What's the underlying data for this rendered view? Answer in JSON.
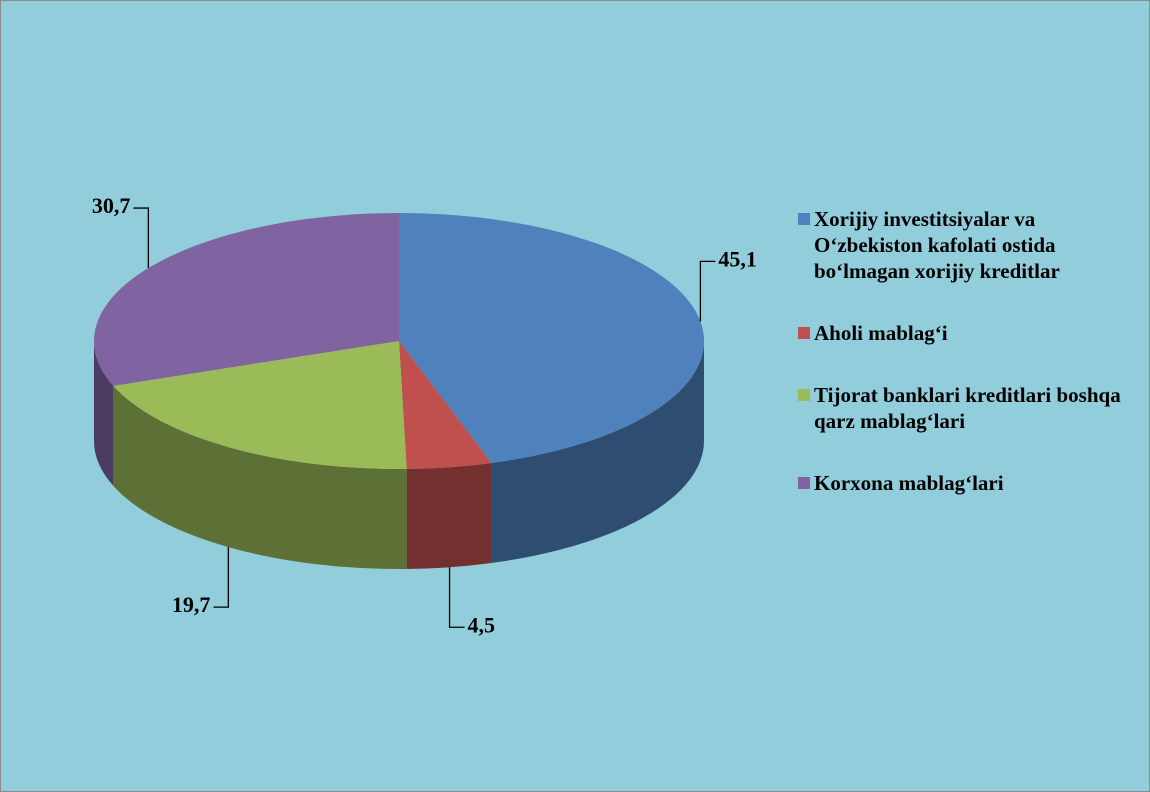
{
  "chart_data": {
    "type": "pie",
    "categories": [
      "Xorijiy investitsiyalar va O‘zbekiston kafolati ostida bo‘lmagan xorijiy kreditlar",
      "Aholi mablag‘i",
      "Tijorat banklari kreditlari boshqa qarz mablag‘lari",
      "Korxona mablag‘lari"
    ],
    "values": [
      45.1,
      4.5,
      19.7,
      30.7
    ],
    "value_labels": [
      "45,1",
      "4,5",
      "19,7",
      "30,7"
    ],
    "colors": [
      "#4f81bd",
      "#c0504d",
      "#9bbb59",
      "#8064a2"
    ],
    "legend": "right"
  }
}
